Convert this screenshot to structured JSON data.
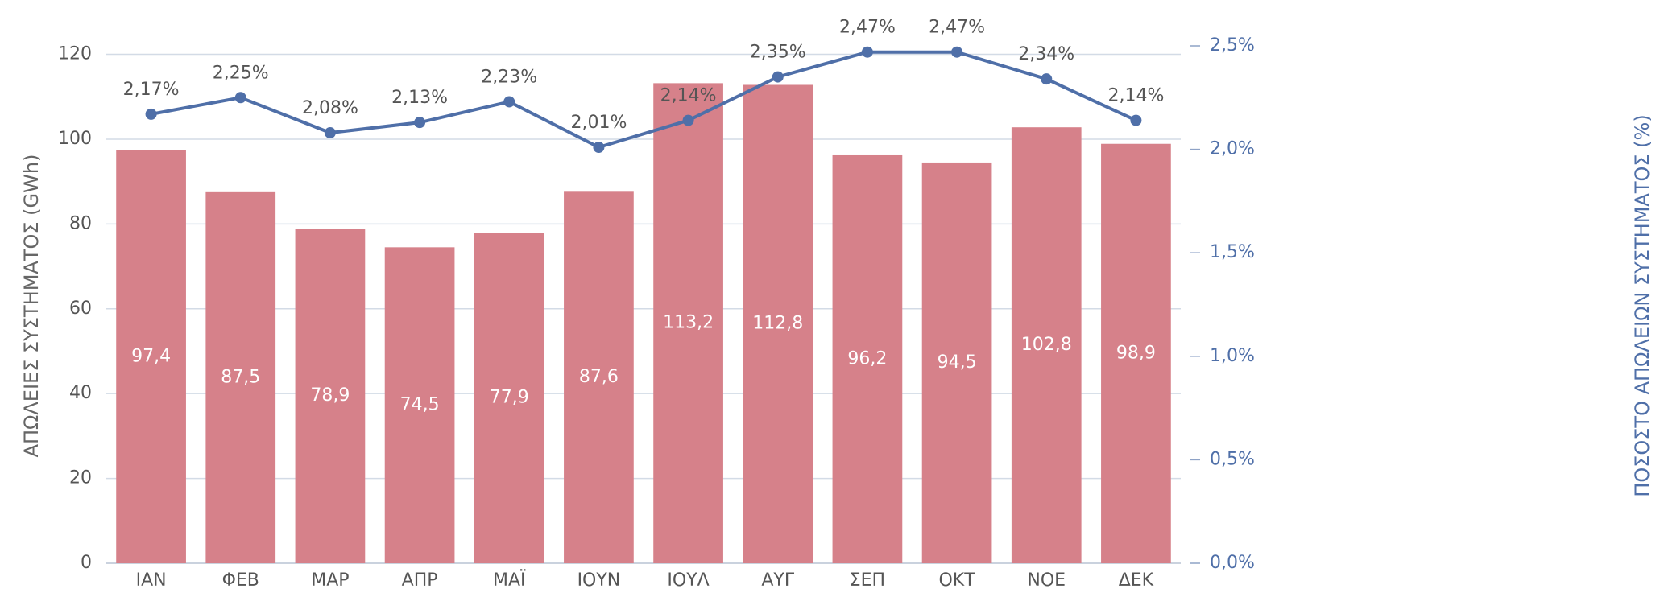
{
  "chart_data": {
    "type": "bar-line",
    "y_label": "ΑΠΩΛΕΙΕΣ ΣΥΣΤΗΜΑΤΟΣ (GWh)",
    "y2_label": "ΠΟΣΟΣΤΟ ΑΠΩΛΕΙΩΝ ΣΥΣΤΗΜΑΤΟΣ (%)",
    "categories": [
      "ΙΑΝ",
      "ΦΕΒ",
      "ΜΑΡ",
      "ΑΠΡ",
      "ΜΑΪ",
      "ΙΟΥΝ",
      "ΙΟΥΛ",
      "ΑΥΓ",
      "ΣΕΠ",
      "ΟΚΤ",
      "ΝΟΕ",
      "ΔΕΚ"
    ],
    "series": [
      {
        "name": "ΑΠΩΛΕΙΕΣ ΣΥΣΤΗΜΑΤΟΣ",
        "type": "bar",
        "color": "#d6818a",
        "axis": "y",
        "values": [
          97.4,
          87.5,
          78.9,
          74.5,
          77.9,
          87.6,
          113.2,
          112.8,
          96.2,
          94.5,
          102.8,
          98.9
        ],
        "value_labels": [
          "97,4",
          "87,5",
          "78,9",
          "74,5",
          "77,9",
          "87,6",
          "113,2",
          "112,8",
          "96,2",
          "94,5",
          "102,8",
          "98,9"
        ]
      },
      {
        "name": "ΠΟΣΟΣΤΟ ΑΠΩΛΕΙΩΝ",
        "type": "line",
        "color": "#4f6fa8",
        "axis": "y2",
        "values": [
          2.17,
          2.25,
          2.08,
          2.13,
          2.23,
          2.01,
          2.14,
          2.35,
          2.47,
          2.47,
          2.34,
          2.14
        ],
        "value_labels": [
          "2,17%",
          "2,25%",
          "2,08%",
          "2,13%",
          "2,23%",
          "2,01%",
          "2,14%",
          "2,35%",
          "2,47%",
          "2,47%",
          "2,34%",
          "2,14%"
        ]
      }
    ],
    "ylim": [
      0,
      122
    ],
    "yticks": [
      0,
      20,
      40,
      60,
      80,
      100,
      120
    ],
    "y2lim": [
      0,
      2.5
    ],
    "y2ticks": [
      {
        "value": 0,
        "label": "0,0%"
      },
      {
        "value": 0.5,
        "label": "0,5%"
      },
      {
        "value": 1,
        "label": "1,0%"
      },
      {
        "value": 1.5,
        "label": "1,5%"
      },
      {
        "value": 2,
        "label": "2,0%"
      },
      {
        "value": 2.5,
        "label": "2,5%"
      }
    ],
    "grid": true
  }
}
